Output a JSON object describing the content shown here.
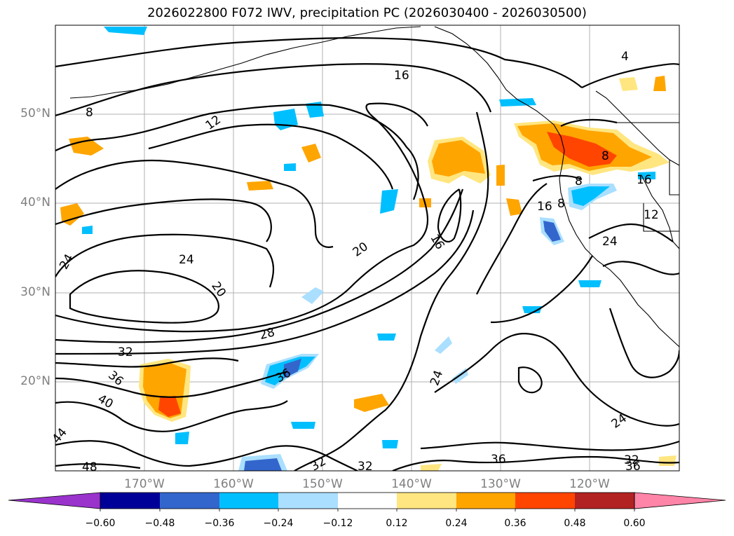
{
  "figure": {
    "title": "2026022800 F072 IWV, precipitation PC (2026030400 - 2026030500)"
  },
  "axes": {
    "lat_labels": [
      "50°N",
      "40°N",
      "30°N",
      "20°N"
    ],
    "lon_labels": [
      "170°W",
      "160°W",
      "150°W",
      "140°W",
      "130°W",
      "120°W"
    ]
  },
  "contour_labels": [
    "4",
    "8",
    "12",
    "16",
    "16",
    "16",
    "20",
    "20",
    "24",
    "24",
    "24",
    "24",
    "28",
    "32",
    "32",
    "32",
    "32",
    "36",
    "36",
    "36",
    "36",
    "40",
    "44",
    "48",
    "8",
    "8",
    "8",
    "12",
    "16",
    "24"
  ],
  "colorbar": {
    "ticks": [
      "−0.60",
      "−0.48",
      "−0.36",
      "−0.24",
      "−0.12",
      "0.12",
      "0.24",
      "0.36",
      "0.48",
      "0.60"
    ],
    "colors": [
      "#9933cc",
      "#000099",
      "#3366cc",
      "#00bfff",
      "#aadfff",
      "#ffffff",
      "#ffe680",
      "#ffa500",
      "#ff4500",
      "#b22222",
      "#ff85a8"
    ]
  }
}
